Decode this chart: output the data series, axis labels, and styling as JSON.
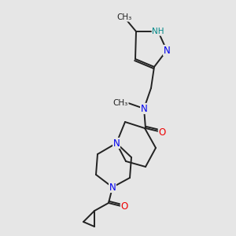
{
  "background_color": "#e6e6e6",
  "bond_color": "#222222",
  "bond_width": 1.4,
  "atom_colors": {
    "N": "#0000ee",
    "O": "#ee0000",
    "NH": "#008888",
    "C": "#222222"
  },
  "font_size": 8.5
}
